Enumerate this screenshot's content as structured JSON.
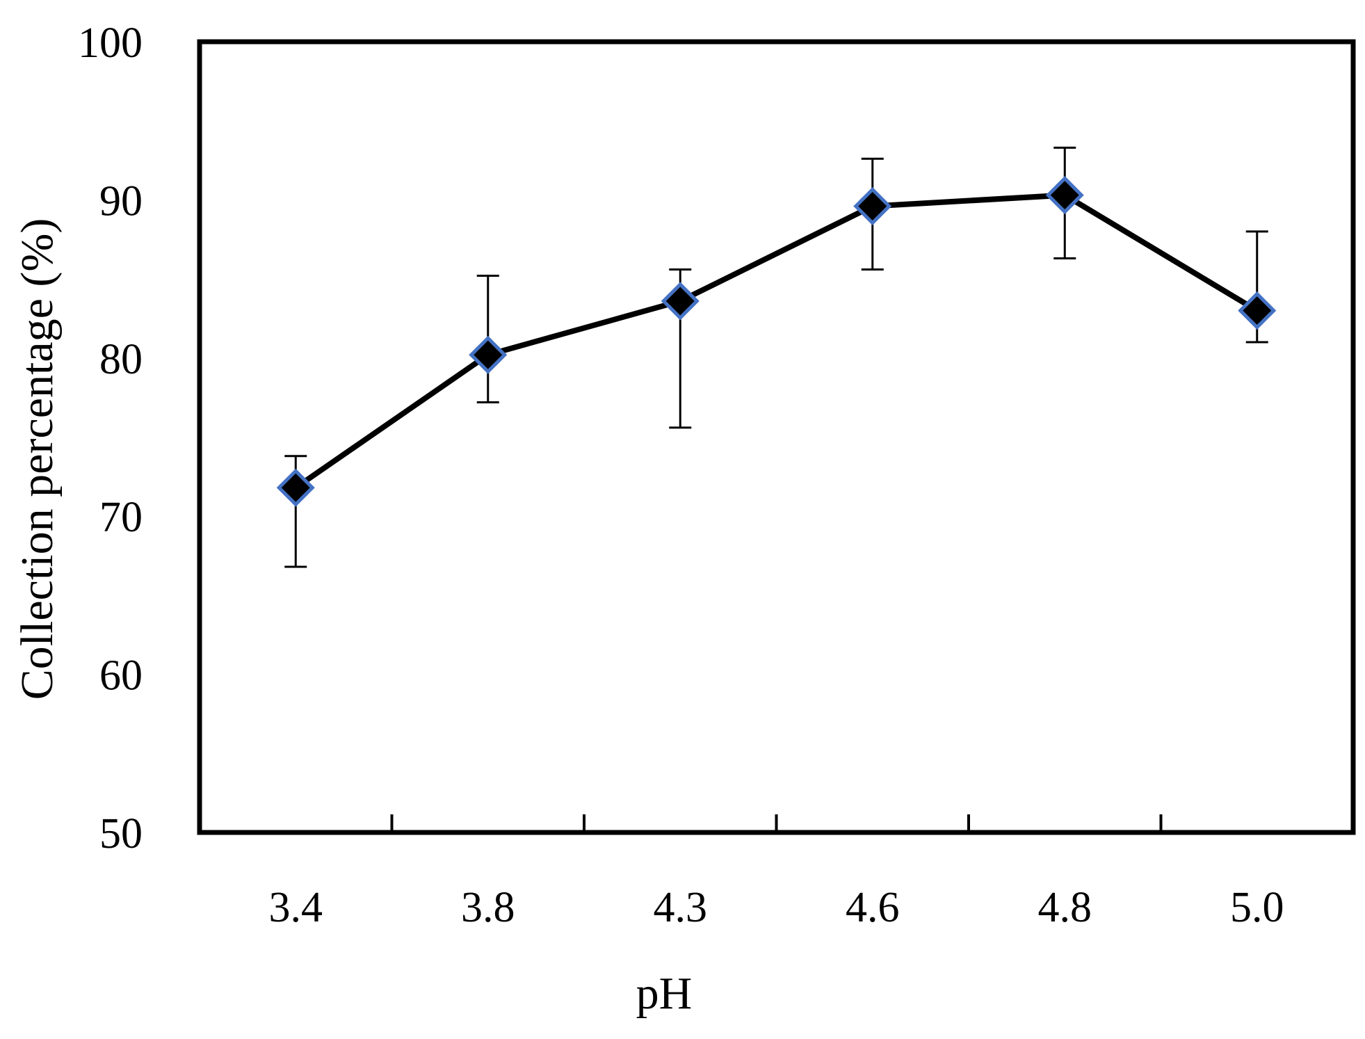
{
  "chart_data": {
    "type": "line",
    "xlabel": "pH",
    "ylabel": "Collection percentage (%)",
    "categories": [
      "3.4",
      "3.8",
      "4.3",
      "4.6",
      "4.8",
      "5.0"
    ],
    "yticks": [
      "50",
      "60",
      "70",
      "80",
      "90",
      "100"
    ],
    "ylim": [
      50,
      100
    ],
    "grid": false,
    "series": [
      {
        "values": [
          71.8,
          80.2,
          83.6,
          89.6,
          90.3,
          83.0
        ],
        "error_upper": [
          73.8,
          85.2,
          85.6,
          92.6,
          93.3,
          88.0
        ],
        "error_lower": [
          66.8,
          77.2,
          75.6,
          85.6,
          86.3,
          81.0
        ],
        "marker": "diamond",
        "marker_fill": "#000000",
        "marker_edge": "#4472C4",
        "line_color": "#000000"
      }
    ]
  }
}
